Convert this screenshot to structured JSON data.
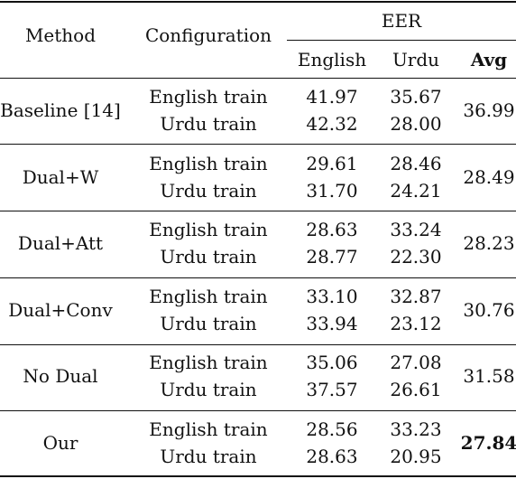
{
  "header": {
    "method": "Method",
    "configuration": "Configuration",
    "eer": "EER",
    "english": "English",
    "urdu": "Urdu",
    "avg": "Avg"
  },
  "rows": [
    {
      "method": "Baseline [14]",
      "train": [
        {
          "config": "English train",
          "english": "41.97",
          "urdu": "35.67"
        },
        {
          "config": "Urdu train",
          "english": "42.32",
          "urdu": "28.00"
        }
      ],
      "avg": "36.99"
    },
    {
      "method": "Dual+W",
      "train": [
        {
          "config": "English train",
          "english": "29.61",
          "urdu": "28.46"
        },
        {
          "config": "Urdu train",
          "english": "31.70",
          "urdu": "24.21"
        }
      ],
      "avg": "28.49"
    },
    {
      "method": "Dual+Att",
      "train": [
        {
          "config": "English train",
          "english": "28.63",
          "urdu": "33.24"
        },
        {
          "config": "Urdu train",
          "english": "28.77",
          "urdu": "22.30"
        }
      ],
      "avg": "28.23"
    },
    {
      "method": "Dual+Conv",
      "train": [
        {
          "config": "English train",
          "english": "33.10",
          "urdu": "32.87"
        },
        {
          "config": "Urdu train",
          "english": "33.94",
          "urdu": "23.12"
        }
      ],
      "avg": "30.76"
    },
    {
      "method": "No Dual",
      "train": [
        {
          "config": "English train",
          "english": "35.06",
          "urdu": "27.08"
        },
        {
          "config": "Urdu train",
          "english": "37.57",
          "urdu": "26.61"
        }
      ],
      "avg": "31.58"
    },
    {
      "method": "Our",
      "train": [
        {
          "config": "English train",
          "english": "28.56",
          "urdu": "33.23"
        },
        {
          "config": "Urdu train",
          "english": "28.63",
          "urdu": "20.95"
        }
      ],
      "avg": "27.84"
    }
  ]
}
